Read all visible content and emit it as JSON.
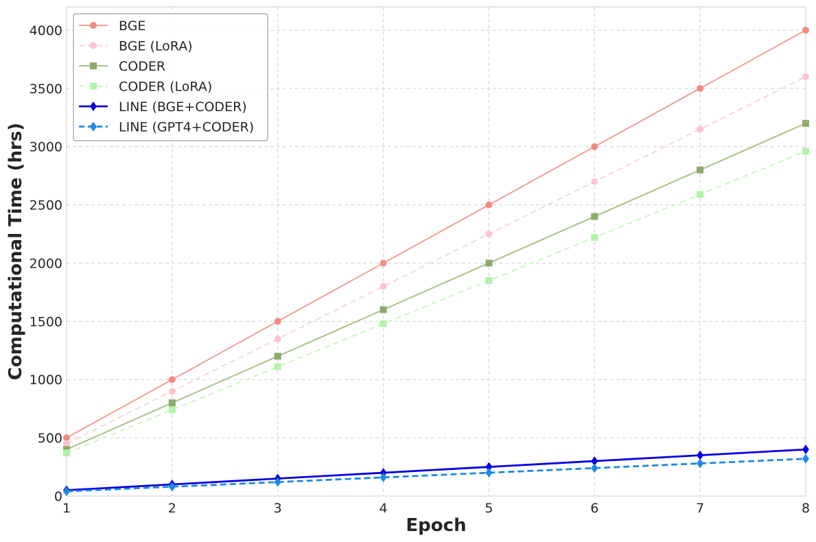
{
  "chart_data": {
    "type": "line",
    "title": "",
    "xlabel": "Epoch",
    "ylabel": "Computational Time (hrs)",
    "x": [
      1,
      2,
      3,
      4,
      5,
      6,
      7,
      8
    ],
    "xlim": [
      1,
      8
    ],
    "ylim": [
      0,
      4200
    ],
    "xticks": [
      1,
      2,
      3,
      4,
      5,
      6,
      7,
      8
    ],
    "yticks": [
      0,
      500,
      1000,
      1500,
      2000,
      2500,
      3000,
      3500,
      4000
    ],
    "grid": true,
    "legend_position": "top-left",
    "series": [
      {
        "name": "BGE",
        "values": [
          500,
          1000,
          1500,
          2000,
          2500,
          3000,
          3500,
          4000
        ],
        "color": "#f4a09a",
        "marker_color": "#f28b82",
        "line_style": "solid",
        "marker": "circle"
      },
      {
        "name": "BGE (LoRA)",
        "values": [
          450,
          900,
          1350,
          1800,
          2250,
          2700,
          3150,
          3600
        ],
        "color": "#fbd3dc",
        "marker_color": "#fbc4d0",
        "line_style": "dashed",
        "marker": "circle"
      },
      {
        "name": "CODER",
        "values": [
          400,
          800,
          1200,
          1600,
          2000,
          2400,
          2800,
          3200
        ],
        "color": "#a9c08a",
        "marker_color": "#8fab6a",
        "line_style": "solid",
        "marker": "square"
      },
      {
        "name": "CODER (LoRA)",
        "values": [
          370,
          740,
          1110,
          1480,
          1850,
          2220,
          2590,
          2960
        ],
        "color": "#c8f7c0",
        "marker_color": "#b3f2aa",
        "line_style": "dashed",
        "marker": "square"
      },
      {
        "name": "LINE (BGE+CODER)",
        "values": [
          50,
          100,
          150,
          200,
          250,
          300,
          350,
          400
        ],
        "color": "#0a00e0",
        "marker_color": "#0a00e0",
        "line_style": "solid",
        "marker": "diamond"
      },
      {
        "name": "LINE (GPT4+CODER)",
        "values": [
          40,
          80,
          120,
          160,
          200,
          240,
          280,
          320
        ],
        "color": "#1e88e5",
        "marker_color": "#1e88e5",
        "line_style": "dashed",
        "marker": "diamond"
      }
    ]
  }
}
